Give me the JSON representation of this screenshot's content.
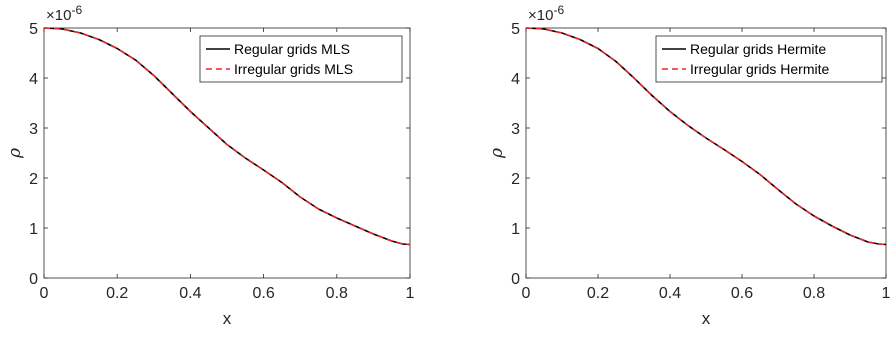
{
  "chart_data": [
    {
      "type": "line",
      "title": "",
      "xlabel": "x",
      "ylabel": "ρ",
      "y_exponent": "×10",
      "y_exponent_power": "-6",
      "xlim": [
        0,
        1
      ],
      "ylim": [
        0,
        5
      ],
      "xticks": [
        "0",
        "0.2",
        "0.4",
        "0.6",
        "0.8",
        "1"
      ],
      "yticks": [
        "0",
        "1",
        "2",
        "3",
        "4",
        "5"
      ],
      "grid": false,
      "legend_position": "top-right",
      "series": [
        {
          "name": "Regular grids MLS",
          "color": "#000000",
          "style": "solid",
          "x": [
            0,
            0.05,
            0.1,
            0.15,
            0.2,
            0.25,
            0.3,
            0.35,
            0.4,
            0.45,
            0.5,
            0.55,
            0.6,
            0.65,
            0.7,
            0.75,
            0.8,
            0.85,
            0.9,
            0.95,
            0.98,
            1.0
          ],
          "y": [
            5.0,
            4.98,
            4.9,
            4.77,
            4.59,
            4.36,
            4.05,
            3.69,
            3.33,
            3.0,
            2.67,
            2.4,
            2.16,
            1.91,
            1.62,
            1.38,
            1.2,
            1.04,
            0.88,
            0.74,
            0.68,
            0.67
          ]
        },
        {
          "name": "Irregular grids MLS",
          "color": "#e8262b",
          "style": "dashed",
          "x": [
            0,
            0.05,
            0.1,
            0.15,
            0.2,
            0.25,
            0.3,
            0.35,
            0.4,
            0.45,
            0.5,
            0.55,
            0.6,
            0.65,
            0.7,
            0.75,
            0.8,
            0.85,
            0.9,
            0.95,
            0.98,
            1.0
          ],
          "y": [
            5.0,
            4.98,
            4.9,
            4.77,
            4.59,
            4.36,
            4.05,
            3.69,
            3.33,
            3.0,
            2.67,
            2.4,
            2.16,
            1.91,
            1.62,
            1.38,
            1.2,
            1.04,
            0.88,
            0.74,
            0.68,
            0.67
          ]
        }
      ]
    },
    {
      "type": "line",
      "title": "",
      "xlabel": "x",
      "ylabel": "ρ",
      "y_exponent": "×10",
      "y_exponent_power": "-6",
      "xlim": [
        0,
        1
      ],
      "ylim": [
        0,
        5
      ],
      "xticks": [
        "0",
        "0.2",
        "0.4",
        "0.6",
        "0.8",
        "1"
      ],
      "yticks": [
        "0",
        "1",
        "2",
        "3",
        "4",
        "5"
      ],
      "grid": false,
      "legend_position": "top-right",
      "series": [
        {
          "name": "Regular grids Hermite",
          "color": "#000000",
          "style": "solid",
          "x": [
            0,
            0.05,
            0.1,
            0.15,
            0.2,
            0.25,
            0.3,
            0.35,
            0.4,
            0.45,
            0.5,
            0.55,
            0.6,
            0.65,
            0.7,
            0.75,
            0.8,
            0.85,
            0.9,
            0.95,
            0.98,
            1.0
          ],
          "y": [
            5.0,
            4.98,
            4.9,
            4.77,
            4.59,
            4.33,
            4.0,
            3.65,
            3.33,
            3.05,
            2.8,
            2.57,
            2.33,
            2.07,
            1.77,
            1.48,
            1.24,
            1.04,
            0.86,
            0.72,
            0.68,
            0.67
          ]
        },
        {
          "name": "Irregular grids Hermite",
          "color": "#e8262b",
          "style": "dashed",
          "x": [
            0,
            0.05,
            0.1,
            0.15,
            0.2,
            0.25,
            0.3,
            0.35,
            0.4,
            0.45,
            0.5,
            0.55,
            0.6,
            0.65,
            0.7,
            0.75,
            0.8,
            0.85,
            0.9,
            0.95,
            0.98,
            1.0
          ],
          "y": [
            5.0,
            4.98,
            4.9,
            4.77,
            4.59,
            4.33,
            4.0,
            3.65,
            3.33,
            3.05,
            2.8,
            2.57,
            2.33,
            2.07,
            1.77,
            1.48,
            1.24,
            1.04,
            0.86,
            0.72,
            0.68,
            0.67
          ]
        }
      ]
    }
  ]
}
